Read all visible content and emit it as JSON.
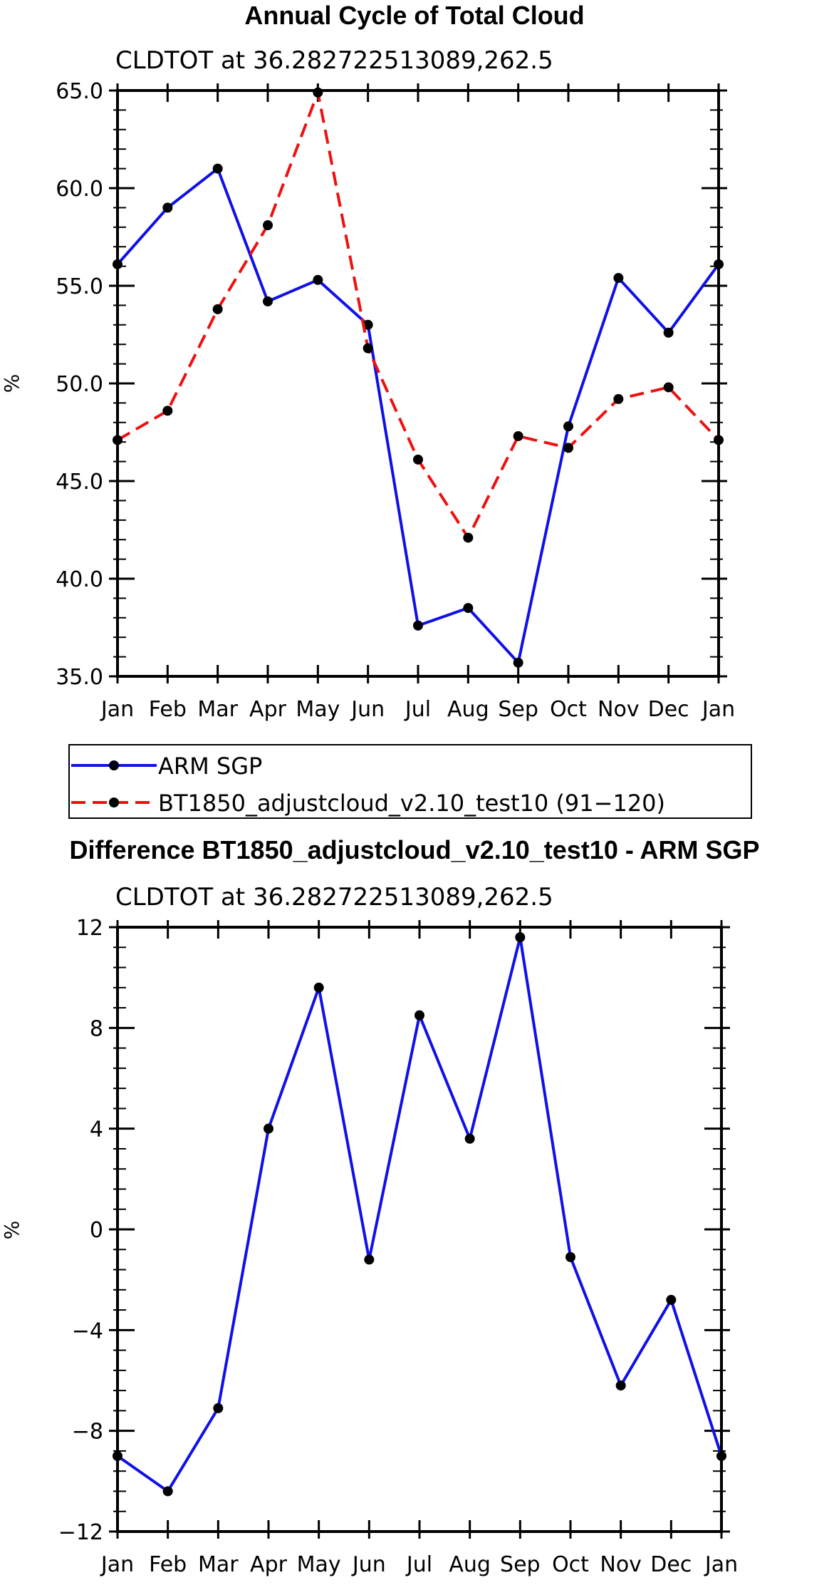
{
  "colors": {
    "obs": "#1010e8",
    "model": "#ee1111",
    "marker": "#000000"
  },
  "legend": {
    "obs_label": "ARM SGP",
    "model_label": "BT1850_adjustcloud_v2.10_test10 (91−120)"
  },
  "chart_data": [
    {
      "type": "line",
      "title": "Annual Cycle of Total Cloud",
      "subtitle": "CLDTOT at 36.282722513089,262.5",
      "ylabel": "%",
      "xlabel": "",
      "categories": [
        "Jan",
        "Feb",
        "Mar",
        "Apr",
        "May",
        "Jun",
        "Jul",
        "Aug",
        "Sep",
        "Oct",
        "Nov",
        "Dec",
        "Jan"
      ],
      "ylim": [
        35,
        65
      ],
      "yticks": [
        35,
        40,
        45,
        50,
        55,
        60,
        65
      ],
      "ytick_labels": [
        "35.0",
        "40.0",
        "45.0",
        "50.0",
        "55.0",
        "60.0",
        "65.0"
      ],
      "series": [
        {
          "name": "ARM SGP",
          "style": "solid",
          "color": "#1010e8",
          "values": [
            56.1,
            59.0,
            61.0,
            54.2,
            55.3,
            53.0,
            37.6,
            38.5,
            35.7,
            47.8,
            55.4,
            52.6,
            56.1
          ]
        },
        {
          "name": "BT1850_adjustcloud_v2.10_test10 (91−120)",
          "style": "dashed",
          "color": "#ee1111",
          "values": [
            47.1,
            48.6,
            53.8,
            58.1,
            64.9,
            51.8,
            46.1,
            42.1,
            47.3,
            46.7,
            49.2,
            49.8,
            47.1
          ]
        }
      ]
    },
    {
      "type": "line",
      "title": "Difference BT1850_adjustcloud_v2.10_test10 - ARM SGP",
      "subtitle": "CLDTOT at 36.282722513089,262.5",
      "ylabel": "%",
      "xlabel": "",
      "categories": [
        "Jan",
        "Feb",
        "Mar",
        "Apr",
        "May",
        "Jun",
        "Jul",
        "Aug",
        "Sep",
        "Oct",
        "Nov",
        "Dec",
        "Jan"
      ],
      "ylim": [
        -12,
        12
      ],
      "yticks": [
        -12,
        -8,
        -4,
        0,
        4,
        8,
        12
      ],
      "ytick_labels": [
        "−12",
        "−8",
        "−4",
        "0",
        "4",
        "8",
        "12"
      ],
      "series": [
        {
          "name": "Difference",
          "style": "solid",
          "color": "#1010e8",
          "values": [
            -9.0,
            -10.4,
            -7.1,
            4.0,
            9.6,
            -1.2,
            8.5,
            3.6,
            11.6,
            -1.1,
            -6.2,
            -2.8,
            -9.0
          ]
        }
      ]
    }
  ]
}
